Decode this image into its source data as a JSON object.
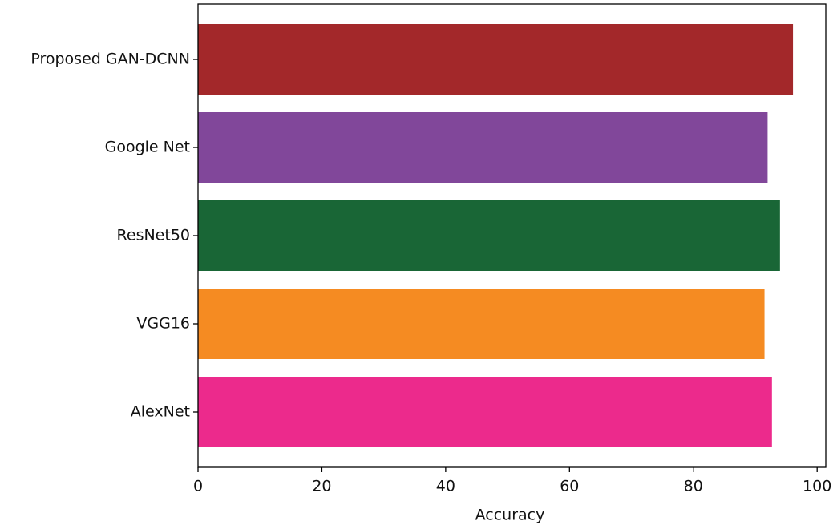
{
  "chart_data": {
    "type": "barh",
    "x_label": "Accuracy",
    "categories": [
      "Proposed GAN-DCNN",
      "Google Net",
      "ResNet50",
      "VGG16",
      "AlexNet"
    ],
    "values": [
      96.1,
      92.0,
      94.0,
      91.5,
      92.7
    ],
    "colors": [
      "#a3282a",
      "#81479a",
      "#196636",
      "#f58b22",
      "#ec2a8c"
    ],
    "xlim": [
      0,
      101.4
    ],
    "xticks": [
      0,
      20,
      40,
      60,
      80,
      100
    ],
    "grid": false
  }
}
